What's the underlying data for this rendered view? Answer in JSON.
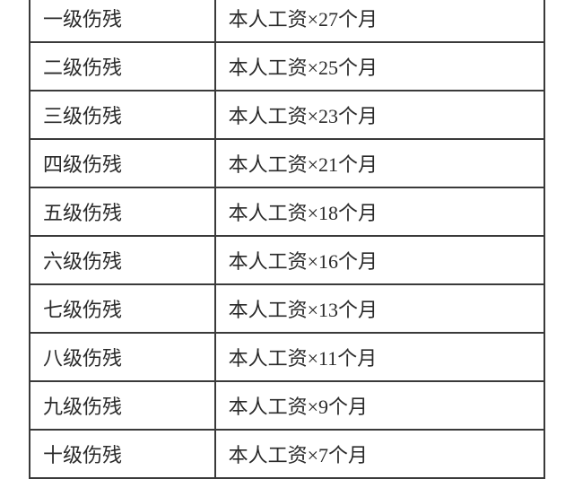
{
  "table": {
    "type": "table",
    "columns": [
      "level",
      "compensation"
    ],
    "column_widths": [
      "36%",
      "64%"
    ],
    "border_color": "#3a3a3a",
    "border_width": 2,
    "text_color": "#2a2a2a",
    "background_color": "#ffffff",
    "font_size": 22,
    "cell_padding": "10px 14px",
    "rows": [
      {
        "level": "一级伤残",
        "compensation": "本人工资×27个月"
      },
      {
        "level": "二级伤残",
        "compensation": "本人工资×25个月"
      },
      {
        "level": "三级伤残",
        "compensation": "本人工资×23个月"
      },
      {
        "level": "四级伤残",
        "compensation": "本人工资×21个月"
      },
      {
        "level": "五级伤残",
        "compensation": "本人工资×18个月"
      },
      {
        "level": "六级伤残",
        "compensation": "本人工资×16个月"
      },
      {
        "level": "七级伤残",
        "compensation": "本人工资×13个月"
      },
      {
        "level": "八级伤残",
        "compensation": "本人工资×11个月"
      },
      {
        "level": "九级伤残",
        "compensation": "本人工资×9个月"
      },
      {
        "level": "十级伤残",
        "compensation": "本人工资×7个月"
      }
    ]
  }
}
